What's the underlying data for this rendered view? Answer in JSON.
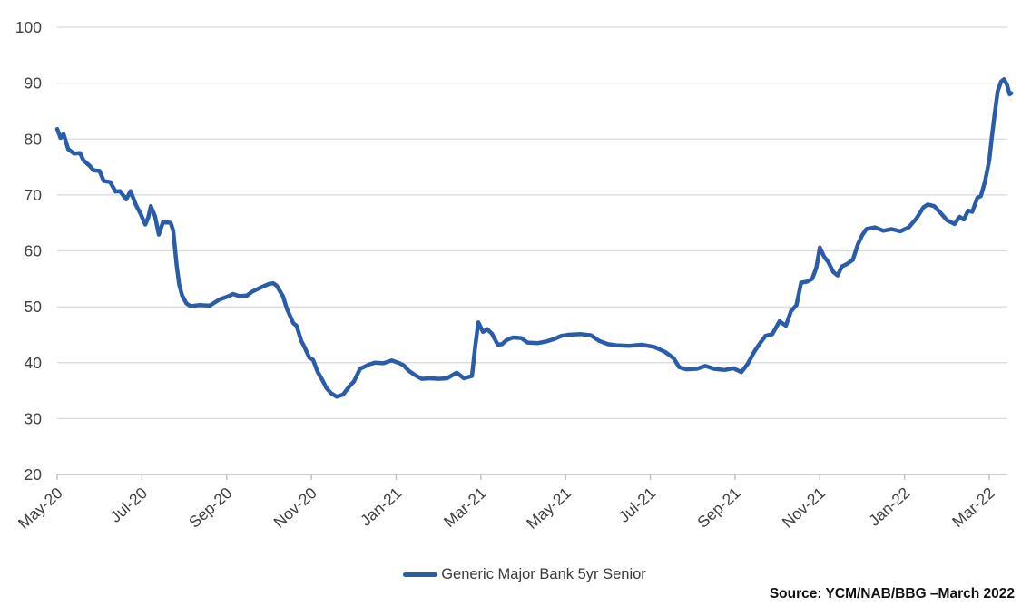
{
  "chart_data": {
    "type": "line",
    "title": "",
    "grid": "horizontal",
    "legend_position": "bottom-center",
    "x_axis": {
      "unit": "months-since-May-2020",
      "tick_positions_months": [
        0,
        2,
        4,
        6,
        8,
        10,
        12,
        14,
        16,
        18,
        20,
        22
      ],
      "tick_labels": [
        "May-20",
        "Jul-20",
        "Sep-20",
        "Nov-20",
        "Jan-21",
        "Mar-21",
        "May-21",
        "Jul-21",
        "Sep-21",
        "Nov-21",
        "Jan-22",
        "Mar-22"
      ]
    },
    "y_axis": {
      "min": 20,
      "max": 100,
      "tick_step": 10,
      "ticks": [
        100,
        90,
        80,
        70,
        60,
        50,
        40,
        30,
        20
      ]
    },
    "series": [
      {
        "name": "Generic Major Bank 5yr Senior",
        "color": "#2B5CA8",
        "points": [
          [
            0,
            81.8
          ],
          [
            0.08,
            80.2
          ],
          [
            0.15,
            80.9
          ],
          [
            0.26,
            78.2
          ],
          [
            0.4,
            77.4
          ],
          [
            0.54,
            77.5
          ],
          [
            0.62,
            76.2
          ],
          [
            0.77,
            75.2
          ],
          [
            0.86,
            74.4
          ],
          [
            1.0,
            74.3
          ],
          [
            1.1,
            72.5
          ],
          [
            1.25,
            72.3
          ],
          [
            1.38,
            70.6
          ],
          [
            1.48,
            70.7
          ],
          [
            1.63,
            69.2
          ],
          [
            1.73,
            70.7
          ],
          [
            1.86,
            68.2
          ],
          [
            1.97,
            66.6
          ],
          [
            2.08,
            64.7
          ],
          [
            2.15,
            66.0
          ],
          [
            2.21,
            68.0
          ],
          [
            2.31,
            66.2
          ],
          [
            2.4,
            62.9
          ],
          [
            2.5,
            65.2
          ],
          [
            2.68,
            65.0
          ],
          [
            2.74,
            63.6
          ],
          [
            2.78,
            60.4
          ],
          [
            2.82,
            57.5
          ],
          [
            2.88,
            54.0
          ],
          [
            2.95,
            52.0
          ],
          [
            3.05,
            50.6
          ],
          [
            3.15,
            50.1
          ],
          [
            3.35,
            50.3
          ],
          [
            3.6,
            50.2
          ],
          [
            3.83,
            51.3
          ],
          [
            4.05,
            51.9
          ],
          [
            4.15,
            52.3
          ],
          [
            4.3,
            51.9
          ],
          [
            4.48,
            52.0
          ],
          [
            4.6,
            52.7
          ],
          [
            4.82,
            53.5
          ],
          [
            5.0,
            54.1
          ],
          [
            5.1,
            54.2
          ],
          [
            5.18,
            53.8
          ],
          [
            5.25,
            52.9
          ],
          [
            5.33,
            51.9
          ],
          [
            5.42,
            49.7
          ],
          [
            5.57,
            47.1
          ],
          [
            5.65,
            46.6
          ],
          [
            5.76,
            43.9
          ],
          [
            5.83,
            42.9
          ],
          [
            5.95,
            40.9
          ],
          [
            6.04,
            40.5
          ],
          [
            6.15,
            38.3
          ],
          [
            6.25,
            37.0
          ],
          [
            6.36,
            35.4
          ],
          [
            6.47,
            34.5
          ],
          [
            6.6,
            33.9
          ],
          [
            6.75,
            34.3
          ],
          [
            6.9,
            35.8
          ],
          [
            7.0,
            36.6
          ],
          [
            7.15,
            38.9
          ],
          [
            7.37,
            39.7
          ],
          [
            7.5,
            40.0
          ],
          [
            7.7,
            39.9
          ],
          [
            7.9,
            40.4
          ],
          [
            8.08,
            39.9
          ],
          [
            8.18,
            39.5
          ],
          [
            8.29,
            38.6
          ],
          [
            8.44,
            37.8
          ],
          [
            8.6,
            37.1
          ],
          [
            8.8,
            37.2
          ],
          [
            9.0,
            37.1
          ],
          [
            9.2,
            37.2
          ],
          [
            9.43,
            38.2
          ],
          [
            9.6,
            37.2
          ],
          [
            9.79,
            37.6
          ],
          [
            9.87,
            43.0
          ],
          [
            9.94,
            47.2
          ],
          [
            10.05,
            45.5
          ],
          [
            10.15,
            46.0
          ],
          [
            10.26,
            45.2
          ],
          [
            10.4,
            43.2
          ],
          [
            10.5,
            43.3
          ],
          [
            10.6,
            44.0
          ],
          [
            10.75,
            44.5
          ],
          [
            10.95,
            44.4
          ],
          [
            11.1,
            43.6
          ],
          [
            11.35,
            43.5
          ],
          [
            11.55,
            43.8
          ],
          [
            11.72,
            44.2
          ],
          [
            11.9,
            44.8
          ],
          [
            12.1,
            45.0
          ],
          [
            12.36,
            45.1
          ],
          [
            12.6,
            44.9
          ],
          [
            12.79,
            43.9
          ],
          [
            13.0,
            43.3
          ],
          [
            13.2,
            43.1
          ],
          [
            13.5,
            43.0
          ],
          [
            13.8,
            43.2
          ],
          [
            14.1,
            42.8
          ],
          [
            14.35,
            41.9
          ],
          [
            14.55,
            40.8
          ],
          [
            14.68,
            39.2
          ],
          [
            14.85,
            38.8
          ],
          [
            15.1,
            38.9
          ],
          [
            15.3,
            39.4
          ],
          [
            15.5,
            38.9
          ],
          [
            15.75,
            38.7
          ],
          [
            15.96,
            39.0
          ],
          [
            16.15,
            38.3
          ],
          [
            16.3,
            39.8
          ],
          [
            16.45,
            41.9
          ],
          [
            16.6,
            43.6
          ],
          [
            16.72,
            44.8
          ],
          [
            16.88,
            45.1
          ],
          [
            17.05,
            47.4
          ],
          [
            17.2,
            46.6
          ],
          [
            17.32,
            49.2
          ],
          [
            17.45,
            50.3
          ],
          [
            17.56,
            54.3
          ],
          [
            17.7,
            54.5
          ],
          [
            17.82,
            55.0
          ],
          [
            17.92,
            57.0
          ],
          [
            18.0,
            60.6
          ],
          [
            18.1,
            59.0
          ],
          [
            18.2,
            58.0
          ],
          [
            18.32,
            56.2
          ],
          [
            18.42,
            55.6
          ],
          [
            18.52,
            57.2
          ],
          [
            18.65,
            57.7
          ],
          [
            18.78,
            58.4
          ],
          [
            18.9,
            61.2
          ],
          [
            19.0,
            62.8
          ],
          [
            19.1,
            63.9
          ],
          [
            19.3,
            64.2
          ],
          [
            19.5,
            63.6
          ],
          [
            19.7,
            63.9
          ],
          [
            19.9,
            63.5
          ],
          [
            20.1,
            64.2
          ],
          [
            20.28,
            65.8
          ],
          [
            20.45,
            67.8
          ],
          [
            20.55,
            68.3
          ],
          [
            20.7,
            68.0
          ],
          [
            20.85,
            66.8
          ],
          [
            21.0,
            65.5
          ],
          [
            21.18,
            64.8
          ],
          [
            21.3,
            66.1
          ],
          [
            21.4,
            65.6
          ],
          [
            21.5,
            67.2
          ],
          [
            21.6,
            67.0
          ],
          [
            21.72,
            69.5
          ],
          [
            21.8,
            69.8
          ],
          [
            21.9,
            72.4
          ],
          [
            22.0,
            76.2
          ],
          [
            22.06,
            80.3
          ],
          [
            22.12,
            84.0
          ],
          [
            22.2,
            88.6
          ],
          [
            22.28,
            90.3
          ],
          [
            22.35,
            90.7
          ],
          [
            22.42,
            89.7
          ],
          [
            22.48,
            88.0
          ],
          [
            22.52,
            88.2
          ]
        ]
      }
    ]
  },
  "legend": {
    "label": "Generic Major Bank 5yr Senior"
  },
  "footer": {
    "source": "Source: YCM/NAB/BBG –March 2022"
  },
  "colors": {
    "line": "#2B5CA8",
    "grid": "#D9D9D9",
    "axis": "#BFBFBF",
    "tick_label": "#3F3F3F",
    "source_text": "#111111",
    "background": "#FFFFFF"
  }
}
